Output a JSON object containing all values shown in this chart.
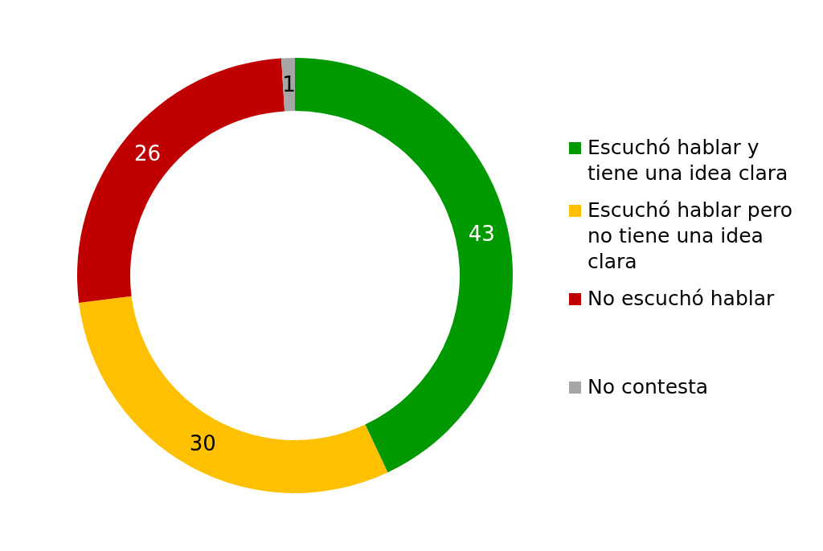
{
  "chart_data": {
    "type": "donut",
    "categories": [
      "Escuchó hablar y tiene una idea clara",
      "Escuchó hablar pero no tiene una idea clara",
      "No escuchó hablar",
      "No contesta"
    ],
    "values": [
      43,
      30,
      26,
      1
    ],
    "colors": [
      "#009900",
      "#ffc000",
      "#c00000",
      "#a6a6a6"
    ],
    "data_labels": true,
    "legend": "right"
  }
}
